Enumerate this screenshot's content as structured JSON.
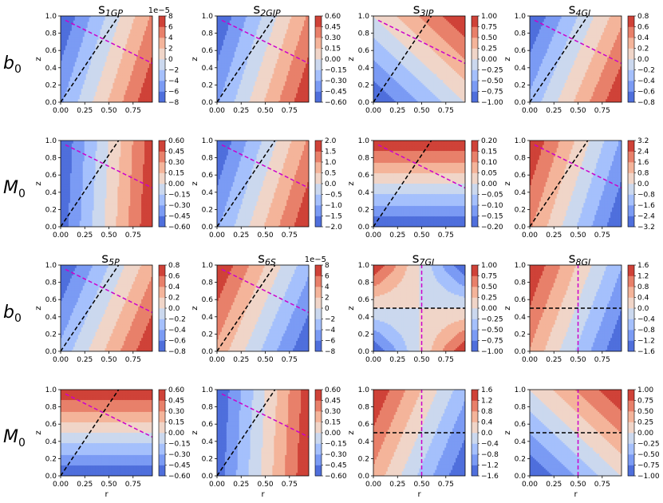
{
  "figure": {
    "row_labels": [
      {
        "base": "b",
        "sub": "0"
      },
      {
        "base": "M",
        "sub": "0"
      },
      {
        "base": "b",
        "sub": "0"
      },
      {
        "base": "M",
        "sub": "0"
      }
    ],
    "colormap": "coolwarm",
    "xlabel": "r",
    "ylabel": "z",
    "x_ticks": [
      "0.00",
      "0.25",
      "0.50",
      "0.75"
    ],
    "y_ticks": [
      "0.0",
      "0.2",
      "0.4",
      "0.6",
      "0.8",
      "1.0"
    ],
    "line_colors": {
      "black": "#000000",
      "magenta": "#cc00cc"
    }
  },
  "chart_data": [
    {
      "id": "s1GP-b0",
      "type": "contour",
      "row": 0,
      "col": 0,
      "title": {
        "base": "s",
        "sub": "1GP"
      },
      "pattern": {
        "kind": "linear",
        "ar": 1.0,
        "az": -0.3,
        "invert": false
      },
      "colorbar": {
        "ticks": [
          "8",
          "6",
          "4",
          "2",
          "0",
          "−2",
          "−4",
          "−6",
          "−8"
        ],
        "exponent": "1e−5"
      },
      "lines": [
        {
          "color": "black",
          "from": [
            0.0,
            0.0
          ],
          "to": [
            0.6,
            1.0
          ]
        },
        {
          "color": "magenta",
          "from": [
            0.05,
            0.95
          ],
          "to": [
            0.95,
            0.45
          ]
        }
      ],
      "xlim": [
        0,
        0.95
      ],
      "ylim": [
        0,
        1
      ]
    },
    {
      "id": "s2GIP-b0",
      "type": "contour",
      "row": 0,
      "col": 1,
      "title": {
        "base": "s",
        "sub": "2GIP"
      },
      "pattern": {
        "kind": "linear",
        "ar": 1.0,
        "az": -0.3,
        "invert": false
      },
      "colorbar": {
        "ticks": [
          "0.60",
          "0.45",
          "0.30",
          "0.15",
          "0.00",
          "−0.15",
          "−0.30",
          "−0.45",
          "−0.60"
        ],
        "exponent": ""
      },
      "lines": [
        {
          "color": "black",
          "from": [
            0.0,
            0.0
          ],
          "to": [
            0.6,
            1.0
          ]
        },
        {
          "color": "magenta",
          "from": [
            0.05,
            0.95
          ],
          "to": [
            0.95,
            0.45
          ]
        }
      ],
      "xlim": [
        0,
        0.95
      ],
      "ylim": [
        0,
        1
      ]
    },
    {
      "id": "s3IP-b0",
      "type": "contour",
      "row": 0,
      "col": 2,
      "title": {
        "base": "s",
        "sub": "3IP"
      },
      "pattern": {
        "kind": "linear",
        "ar": 1.0,
        "az": 1.0,
        "invert": false
      },
      "colorbar": {
        "ticks": [
          "1.00",
          "0.75",
          "0.50",
          "0.25",
          "0.00",
          "−0.25",
          "−0.50",
          "−0.75",
          "−1.00"
        ],
        "exponent": ""
      },
      "lines": [
        {
          "color": "black",
          "from": [
            0.0,
            0.0
          ],
          "to": [
            0.6,
            1.0
          ]
        },
        {
          "color": "magenta",
          "from": [
            0.05,
            0.95
          ],
          "to": [
            0.95,
            0.45
          ]
        }
      ],
      "xlim": [
        0,
        0.95
      ],
      "ylim": [
        0,
        1
      ]
    },
    {
      "id": "s4GI-b0",
      "type": "contour",
      "row": 0,
      "col": 3,
      "title": {
        "base": "s",
        "sub": "4GI"
      },
      "pattern": {
        "kind": "linear",
        "ar": 1.0,
        "az": -0.4,
        "invert": false
      },
      "colorbar": {
        "ticks": [
          "0.8",
          "0.6",
          "0.4",
          "0.2",
          "0.0",
          "−0.2",
          "−0.4",
          "−0.6",
          "−0.8"
        ],
        "exponent": ""
      },
      "lines": [
        {
          "color": "black",
          "from": [
            0.0,
            0.0
          ],
          "to": [
            0.6,
            1.0
          ]
        },
        {
          "color": "magenta",
          "from": [
            0.05,
            0.95
          ],
          "to": [
            0.95,
            0.45
          ]
        }
      ],
      "xlim": [
        0,
        0.95
      ],
      "ylim": [
        0,
        1
      ]
    },
    {
      "id": "s1GP-M0",
      "type": "contour",
      "row": 1,
      "col": 0,
      "title": null,
      "pattern": {
        "kind": "linear",
        "ar": 1.0,
        "az": -0.05,
        "invert": false
      },
      "colorbar": {
        "ticks": [
          "0.60",
          "0.45",
          "0.30",
          "0.15",
          "0.00",
          "−0.15",
          "−0.30",
          "−0.45",
          "−0.60"
        ],
        "exponent": ""
      },
      "lines": [
        {
          "color": "black",
          "from": [
            0.0,
            0.0
          ],
          "to": [
            0.6,
            1.0
          ]
        },
        {
          "color": "magenta",
          "from": [
            0.05,
            0.95
          ],
          "to": [
            0.95,
            0.45
          ]
        }
      ],
      "xlim": [
        0,
        0.95
      ],
      "ylim": [
        0,
        1
      ]
    },
    {
      "id": "s2GIP-M0",
      "type": "contour",
      "row": 1,
      "col": 1,
      "title": null,
      "pattern": {
        "kind": "linear",
        "ar": 1.0,
        "az": -0.3,
        "invert": false
      },
      "colorbar": {
        "ticks": [
          "2.0",
          "1.5",
          "1.0",
          "0.5",
          "0.0",
          "−0.5",
          "−1.0",
          "−1.5",
          "−2.0"
        ],
        "exponent": ""
      },
      "lines": [
        {
          "color": "black",
          "from": [
            0.0,
            0.0
          ],
          "to": [
            0.6,
            1.0
          ]
        },
        {
          "color": "magenta",
          "from": [
            0.05,
            0.95
          ],
          "to": [
            0.95,
            0.45
          ]
        }
      ],
      "xlim": [
        0,
        0.95
      ],
      "ylim": [
        0,
        1
      ]
    },
    {
      "id": "s3IP-M0",
      "type": "contour",
      "row": 1,
      "col": 2,
      "title": null,
      "pattern": {
        "kind": "linear",
        "ar": 0.0,
        "az": 1.0,
        "invert": false
      },
      "colorbar": {
        "ticks": [
          "0.20",
          "0.15",
          "0.10",
          "0.05",
          "0.00",
          "−0.05",
          "−0.10",
          "−0.15",
          "−0.20"
        ],
        "exponent": ""
      },
      "lines": [
        {
          "color": "black",
          "from": [
            0.0,
            0.0
          ],
          "to": [
            0.6,
            1.0
          ]
        },
        {
          "color": "magenta",
          "from": [
            0.05,
            0.95
          ],
          "to": [
            0.95,
            0.45
          ]
        }
      ],
      "xlim": [
        0,
        0.95
      ],
      "ylim": [
        0,
        1
      ]
    },
    {
      "id": "s4GI-M0",
      "type": "contour",
      "row": 1,
      "col": 3,
      "title": null,
      "pattern": {
        "kind": "linear",
        "ar": -1.0,
        "az": 0.3,
        "invert": false
      },
      "colorbar": {
        "ticks": [
          "3.2",
          "2.4",
          "1.6",
          "0.8",
          "0.0",
          "−0.8",
          "−1.6",
          "−2.4",
          "−3.2"
        ],
        "exponent": ""
      },
      "lines": [
        {
          "color": "black",
          "from": [
            0.0,
            0.0
          ],
          "to": [
            0.6,
            1.0
          ]
        },
        {
          "color": "magenta",
          "from": [
            0.05,
            0.95
          ],
          "to": [
            0.95,
            0.45
          ]
        }
      ],
      "xlim": [
        0,
        0.95
      ],
      "ylim": [
        0,
        1
      ]
    },
    {
      "id": "s5P-b0",
      "type": "contour",
      "row": 2,
      "col": 0,
      "title": {
        "base": "s",
        "sub": "5P"
      },
      "pattern": {
        "kind": "linear",
        "ar": 1.0,
        "az": -0.4,
        "invert": false
      },
      "colorbar": {
        "ticks": [
          "0.8",
          "0.6",
          "0.4",
          "0.2",
          "0.0",
          "−0.2",
          "−0.4",
          "−0.6",
          "−0.8"
        ],
        "exponent": ""
      },
      "lines": [
        {
          "color": "black",
          "from": [
            0.0,
            0.0
          ],
          "to": [
            0.6,
            1.0
          ]
        },
        {
          "color": "magenta",
          "from": [
            0.05,
            0.95
          ],
          "to": [
            0.95,
            0.45
          ]
        }
      ],
      "xlim": [
        0,
        0.95
      ],
      "ylim": [
        0,
        1
      ]
    },
    {
      "id": "s6S-b0",
      "type": "contour",
      "row": 2,
      "col": 1,
      "title": {
        "base": "s",
        "sub": "6S"
      },
      "pattern": {
        "kind": "linear",
        "ar": -1.0,
        "az": 0.4,
        "invert": false
      },
      "colorbar": {
        "ticks": [
          "8",
          "6",
          "4",
          "2",
          "0",
          "−2",
          "−4",
          "−6",
          "−8"
        ],
        "exponent": "1e−5"
      },
      "lines": [
        {
          "color": "black",
          "from": [
            0.0,
            0.0
          ],
          "to": [
            0.6,
            1.0
          ]
        },
        {
          "color": "magenta",
          "from": [
            0.05,
            0.95
          ],
          "to": [
            0.95,
            0.45
          ]
        }
      ],
      "xlim": [
        0,
        0.95
      ],
      "ylim": [
        0,
        1
      ]
    },
    {
      "id": "s7GI-b0",
      "type": "contour",
      "row": 2,
      "col": 2,
      "title": {
        "base": "s",
        "sub": "7GI"
      },
      "pattern": {
        "kind": "product",
        "invert": false
      },
      "colorbar": {
        "ticks": [
          "1.00",
          "0.75",
          "0.50",
          "0.25",
          "0.00",
          "−0.25",
          "−0.50",
          "−0.75",
          "−1.00"
        ],
        "exponent": ""
      },
      "lines": [
        {
          "color": "black",
          "from": [
            0.0,
            0.5
          ],
          "to": [
            0.95,
            0.5
          ]
        },
        {
          "color": "magenta",
          "from": [
            0.5,
            0.0
          ],
          "to": [
            0.5,
            1.0
          ]
        }
      ],
      "xlim": [
        0,
        0.95
      ],
      "ylim": [
        0,
        1
      ]
    },
    {
      "id": "s8GI-b0",
      "type": "contour",
      "row": 2,
      "col": 3,
      "title": {
        "base": "s",
        "sub": "8GI"
      },
      "pattern": {
        "kind": "linear",
        "ar": -1.0,
        "az": 0.35,
        "invert": false
      },
      "colorbar": {
        "ticks": [
          "1.6",
          "1.2",
          "0.8",
          "0.4",
          "0.0",
          "−0.4",
          "−0.8",
          "−1.2",
          "−1.6"
        ],
        "exponent": ""
      },
      "lines": [
        {
          "color": "black",
          "from": [
            0.0,
            0.5
          ],
          "to": [
            0.95,
            0.5
          ]
        },
        {
          "color": "magenta",
          "from": [
            0.5,
            0.0
          ],
          "to": [
            0.5,
            1.0
          ]
        }
      ],
      "xlim": [
        0,
        0.95
      ],
      "ylim": [
        0,
        1
      ]
    },
    {
      "id": "s5P-M0",
      "type": "contour",
      "row": 3,
      "col": 0,
      "title": null,
      "pattern": {
        "kind": "linear",
        "ar": 0.0,
        "az": 1.0,
        "invert": false
      },
      "colorbar": {
        "ticks": [
          "0.60",
          "0.45",
          "0.30",
          "0.15",
          "0.00",
          "−0.15",
          "−0.30",
          "−0.45",
          "−0.60"
        ],
        "exponent": ""
      },
      "lines": [
        {
          "color": "black",
          "from": [
            0.0,
            0.0
          ],
          "to": [
            0.6,
            1.0
          ]
        },
        {
          "color": "magenta",
          "from": [
            0.05,
            0.95
          ],
          "to": [
            0.95,
            0.45
          ]
        }
      ],
      "xlim": [
        0,
        0.95
      ],
      "ylim": [
        0,
        1
      ]
    },
    {
      "id": "s6S-M0",
      "type": "contour",
      "row": 3,
      "col": 1,
      "title": null,
      "pattern": {
        "kind": "linear",
        "ar": 1.0,
        "az": -0.05,
        "invert": false
      },
      "colorbar": {
        "ticks": [
          "0.60",
          "0.45",
          "0.30",
          "0.15",
          "0.00",
          "−0.15",
          "−0.30",
          "−0.45",
          "−0.60"
        ],
        "exponent": ""
      },
      "lines": [
        {
          "color": "black",
          "from": [
            0.0,
            0.0
          ],
          "to": [
            0.6,
            1.0
          ]
        },
        {
          "color": "magenta",
          "from": [
            0.05,
            0.95
          ],
          "to": [
            0.95,
            0.45
          ]
        }
      ],
      "xlim": [
        0,
        0.95
      ],
      "ylim": [
        0,
        1
      ]
    },
    {
      "id": "s7GI-M0",
      "type": "contour",
      "row": 3,
      "col": 2,
      "title": null,
      "pattern": {
        "kind": "linear",
        "ar": -1.0,
        "az": 0.4,
        "invert": false
      },
      "colorbar": {
        "ticks": [
          "1.6",
          "1.2",
          "0.8",
          "0.4",
          "0.0",
          "−0.4",
          "−0.8",
          "−1.2",
          "−1.6"
        ],
        "exponent": ""
      },
      "lines": [
        {
          "color": "black",
          "from": [
            0.0,
            0.5
          ],
          "to": [
            0.95,
            0.5
          ]
        },
        {
          "color": "magenta",
          "from": [
            0.5,
            0.0
          ],
          "to": [
            0.5,
            1.0
          ]
        }
      ],
      "xlim": [
        0,
        0.95
      ],
      "ylim": [
        0,
        1
      ]
    },
    {
      "id": "s8GI-M0",
      "type": "contour",
      "row": 3,
      "col": 3,
      "title": null,
      "pattern": {
        "kind": "linear",
        "ar": 1.0,
        "az": 1.0,
        "invert": false
      },
      "colorbar": {
        "ticks": [
          "1.00",
          "0.75",
          "0.50",
          "0.25",
          "0.00",
          "−0.25",
          "−0.50",
          "−0.75",
          "−1.00"
        ],
        "exponent": ""
      },
      "lines": [
        {
          "color": "black",
          "from": [
            0.0,
            0.5
          ],
          "to": [
            0.95,
            0.5
          ]
        },
        {
          "color": "magenta",
          "from": [
            0.5,
            0.0
          ],
          "to": [
            0.5,
            1.0
          ]
        }
      ],
      "xlim": [
        0,
        0.95
      ],
      "ylim": [
        0,
        1
      ]
    }
  ]
}
